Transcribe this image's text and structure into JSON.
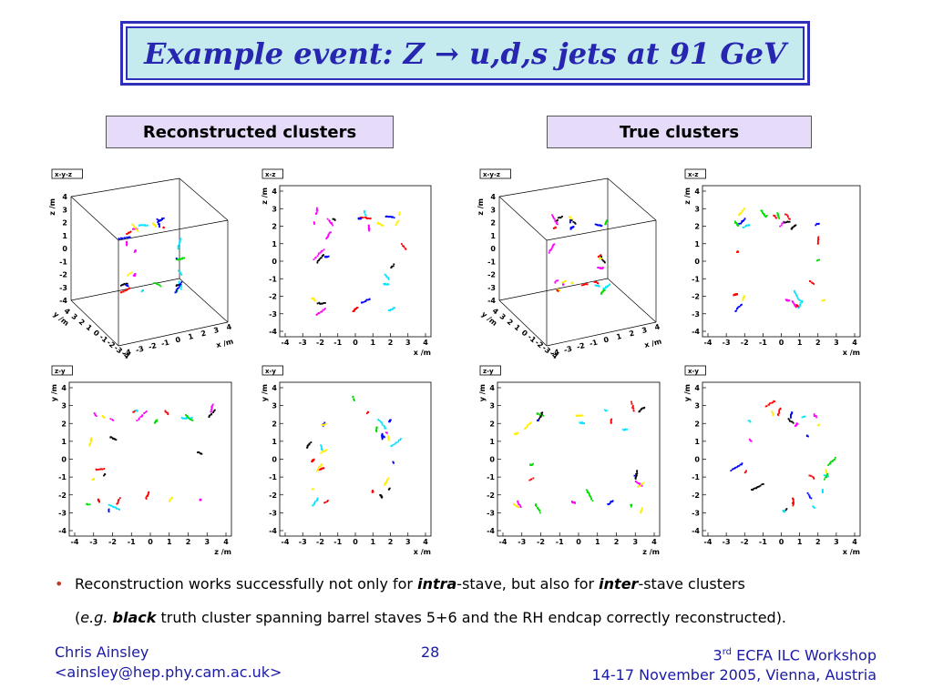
{
  "title": {
    "prefix": "Example event: Z ",
    "arrow": "→",
    "suffix": " u,d,s jets at 91 GeV"
  },
  "labels": {
    "left": "Reconstructed clusters",
    "right": "True clusters"
  },
  "panels": [
    {
      "id": "rec-xyz",
      "tag": "x-y-z",
      "kind": "3d",
      "group": "reconstructed"
    },
    {
      "id": "rec-xz",
      "tag": "x-z",
      "kind": "xz",
      "group": "reconstructed",
      "xlabel": "x /m",
      "ylabel": "z /m"
    },
    {
      "id": "true-xyz",
      "tag": "x-y-z",
      "kind": "3d",
      "group": "true"
    },
    {
      "id": "true-xz",
      "tag": "x-z",
      "kind": "xz",
      "group": "true",
      "xlabel": "x /m",
      "ylabel": "z /m"
    },
    {
      "id": "rec-zy",
      "tag": "z-y",
      "kind": "zy",
      "group": "reconstructed",
      "xlabel": "z /m",
      "ylabel": "y /m"
    },
    {
      "id": "rec-xy",
      "tag": "x-y",
      "kind": "xy",
      "group": "reconstructed",
      "xlabel": "x /m",
      "ylabel": "y /m"
    },
    {
      "id": "true-zy",
      "tag": "z-y",
      "kind": "zy",
      "group": "true",
      "xlabel": "z /m",
      "ylabel": "y /m"
    },
    {
      "id": "true-xy",
      "tag": "x-y",
      "kind": "xy",
      "group": "true",
      "xlabel": "x /m",
      "ylabel": "y /m"
    }
  ],
  "axis3d": {
    "xlabel": "x /m",
    "ylabel": "y /m",
    "zlabel": "z /m"
  },
  "ticks": [
    "-4",
    "-3",
    "-2",
    "-1",
    "0",
    "1",
    "2",
    "3",
    "4"
  ],
  "bullet": {
    "marker": "•",
    "l1a": "Reconstruction works successfully not only for ",
    "l1b": "intra",
    "l1c": "-stave, but also for ",
    "l1d": "inter",
    "l1e": "-stave clusters",
    "l2a": "(",
    "l2b": "e.g.",
    "l2c": " ",
    "l2d": "black",
    "l2e": " truth cluster spanning barrel staves 5+6 and the RH endcap correctly reconstructed)."
  },
  "footer": {
    "author": "Chris Ainsley",
    "email": "<ainsley@hep.phy.cam.ac.uk>",
    "page": "28",
    "workshop_num": "3",
    "workshop_sup": "rd",
    "workshop_name": " ECFA ILC Workshop",
    "dates": "14-17 November 2005, Vienna, Austria"
  },
  "colors": {
    "title_text": "#2626b0",
    "title_bg": "#c5ebef",
    "label_bg": "#e6dcfa",
    "footer_text": "#1a1aa6",
    "hit_colors": [
      "#000000",
      "#ff0000",
      "#00dd00",
      "#0000ff",
      "#ffee00",
      "#ff00ff",
      "#00e5ff"
    ]
  }
}
